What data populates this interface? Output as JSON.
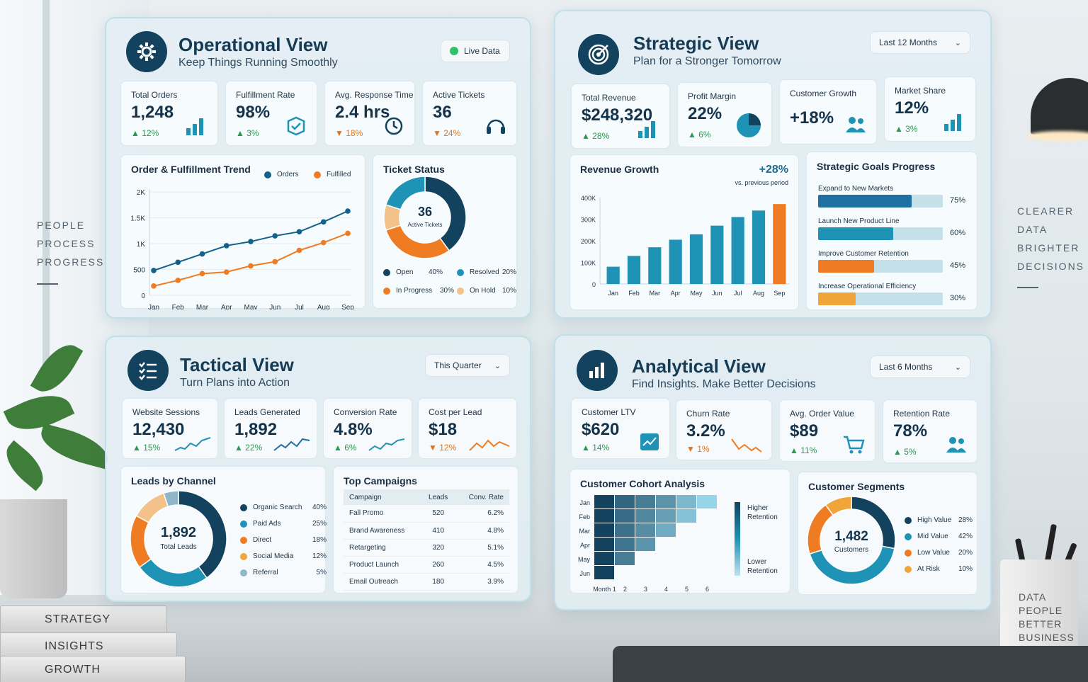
{
  "colors": {
    "navy": "#12425e",
    "teal": "#1f93b6",
    "orange": "#ef7b22",
    "green": "#2a9a4f",
    "peach": "#f2c28a",
    "amber": "#f0a53b"
  },
  "side_left": {
    "lines": [
      "PEOPLE",
      "PROCESS",
      "PROGRESS"
    ]
  },
  "side_right": {
    "lines": [
      "CLEARER",
      "DATA",
      "BRIGHTER",
      "DECISIONS"
    ]
  },
  "books": [
    "STRATEGY",
    "INSIGHTS",
    "GROWTH"
  ],
  "cup": {
    "lines": [
      "DATA",
      "PEOPLE",
      "BETTER",
      "BUSINESS"
    ]
  },
  "operational": {
    "title": "Operational View",
    "subtitle": "Keep Things Running Smoothly",
    "icon": "gear-icon",
    "badge": "Live Data",
    "kpis": [
      {
        "label": "Total Orders",
        "value": "1,248",
        "delta": "12%",
        "dir": "up",
        "icon": "bar-chart-icon"
      },
      {
        "label": "Fulfillment Rate",
        "value": "98%",
        "delta": "3%",
        "dir": "up",
        "icon": "box-icon"
      },
      {
        "label": "Avg. Response Time",
        "value": "2.4 hrs",
        "delta": "18%",
        "dir": "down",
        "icon": "clock-icon"
      },
      {
        "label": "Active Tickets",
        "value": "36",
        "delta": "24%",
        "dir": "down",
        "icon": "headset-icon"
      }
    ],
    "trend": {
      "title": "Order & Fulfillment Trend",
      "legend": [
        "Orders",
        "Fulfilled"
      ],
      "yticks": [
        "2K",
        "1.5K",
        "1K",
        "500",
        "0"
      ],
      "months": [
        "Jan",
        "Feb",
        "Mar",
        "Apr",
        "May",
        "Jun",
        "Jul",
        "Aug",
        "Sep"
      ]
    },
    "tickets": {
      "title": "Ticket Status",
      "center_value": "36",
      "center_label": "Active Tickets",
      "legend": [
        {
          "name": "Open",
          "pct": "40%"
        },
        {
          "name": "Resolved",
          "pct": "20%"
        },
        {
          "name": "In Progress",
          "pct": "30%"
        },
        {
          "name": "On Hold",
          "pct": "10%"
        }
      ]
    }
  },
  "strategic": {
    "title": "Strategic View",
    "subtitle": "Plan for a Stronger Tomorrow",
    "icon": "target-icon",
    "range": "Last 12 Months",
    "kpis": [
      {
        "label": "Total Revenue",
        "value": "$248,320",
        "delta": "28%",
        "dir": "up",
        "icon": "bar-chart-icon"
      },
      {
        "label": "Profit Margin",
        "value": "22%",
        "delta": "6%",
        "dir": "up",
        "icon": "pie-icon"
      },
      {
        "label": "Customer Growth",
        "value": "+18%",
        "delta": "",
        "dir": "up",
        "icon": "users-icon"
      },
      {
        "label": "Market Share",
        "value": "12%",
        "delta": "3%",
        "dir": "up",
        "icon": "bar-chart-icon"
      }
    ],
    "revenue": {
      "title": "Revenue Growth",
      "change": "+28%",
      "change_note": "vs. previous period",
      "yticks": [
        "400K",
        "300K",
        "200K",
        "100K",
        "0"
      ],
      "months": [
        "Jan",
        "Feb",
        "Mar",
        "Apr",
        "May",
        "Jun",
        "Jul",
        "Aug",
        "Sep"
      ]
    },
    "goals": {
      "title": "Strategic Goals Progress",
      "items": [
        {
          "label": "Expand to New Markets",
          "pct": "75%",
          "value": 0.75,
          "color": "#1f6fa0"
        },
        {
          "label": "Launch New Product Line",
          "pct": "60%",
          "value": 0.6,
          "color": "#1f93b6"
        },
        {
          "label": "Improve Customer Retention",
          "pct": "45%",
          "value": 0.45,
          "color": "#ef7b22"
        },
        {
          "label": "Increase Operational Efficiency",
          "pct": "30%",
          "value": 0.3,
          "color": "#f0a53b"
        }
      ]
    }
  },
  "tactical": {
    "title": "Tactical View",
    "subtitle": "Turn Plans into Action",
    "icon": "checklist-icon",
    "range": "This Quarter",
    "kpis": [
      {
        "label": "Website Sessions",
        "value": "12,430",
        "delta": "15%",
        "dir": "up",
        "icon": "sparkline-icon"
      },
      {
        "label": "Leads Generated",
        "value": "1,892",
        "delta": "22%",
        "dir": "up",
        "icon": "sparkline-icon"
      },
      {
        "label": "Conversion Rate",
        "value": "4.8%",
        "delta": "6%",
        "dir": "up",
        "icon": "sparkline-icon"
      },
      {
        "label": "Cost per Lead",
        "value": "$18",
        "delta": "12%",
        "dir": "down",
        "icon": "sparkline-icon"
      }
    ],
    "channels": {
      "title": "Leads by Channel",
      "center_value": "1,892",
      "center_label": "Total Leads",
      "legend": [
        {
          "name": "Organic Search",
          "pct": "40%"
        },
        {
          "name": "Paid Ads",
          "pct": "25%"
        },
        {
          "name": "Direct",
          "pct": "18%"
        },
        {
          "name": "Social Media",
          "pct": "12%"
        },
        {
          "name": "Referral",
          "pct": "5%"
        }
      ]
    },
    "campaigns": {
      "title": "Top Campaigns",
      "headers": [
        "Campaign",
        "Leads",
        "Conv. Rate"
      ],
      "rows": [
        [
          "Fall Promo",
          "520",
          "6.2%"
        ],
        [
          "Brand Awareness",
          "410",
          "4.8%"
        ],
        [
          "Retargeting",
          "320",
          "5.1%"
        ],
        [
          "Product Launch",
          "260",
          "4.5%"
        ],
        [
          "Email Outreach",
          "180",
          "3.9%"
        ]
      ]
    }
  },
  "analytical": {
    "title": "Analytical View",
    "subtitle": "Find Insights. Make Better Decisions",
    "icon": "analytics-icon",
    "range": "Last 6 Months",
    "kpis": [
      {
        "label": "Customer LTV",
        "value": "$620",
        "delta": "14%",
        "dir": "up",
        "icon": "trend-icon"
      },
      {
        "label": "Churn Rate",
        "value": "3.2%",
        "delta": "1%",
        "dir": "down",
        "icon": "sparkline-icon"
      },
      {
        "label": "Avg. Order Value",
        "value": "$89",
        "delta": "11%",
        "dir": "up",
        "icon": "cart-icon"
      },
      {
        "label": "Retention Rate",
        "value": "78%",
        "delta": "5%",
        "dir": "up",
        "icon": "users-icon"
      }
    ],
    "cohort": {
      "title": "Customer Cohort Analysis",
      "rows": [
        "Jan",
        "Feb",
        "Mar",
        "Apr",
        "May",
        "Jun"
      ],
      "cols": [
        "Month 1",
        "2",
        "3",
        "4",
        "5",
        "6"
      ],
      "legend_high": "Higher Retention",
      "legend_low": "Lower Retention"
    },
    "segments": {
      "title": "Customer Segments",
      "center_value": "1,482",
      "center_label": "Customers",
      "legend": [
        {
          "name": "High Value",
          "pct": "28%"
        },
        {
          "name": "Mid Value",
          "pct": "42%"
        },
        {
          "name": "Low Value",
          "pct": "20%"
        },
        {
          "name": "At Risk",
          "pct": "10%"
        }
      ]
    }
  },
  "chart_data": [
    {
      "type": "line",
      "title": "Order & Fulfillment Trend",
      "categories": [
        "Jan",
        "Feb",
        "Mar",
        "Apr",
        "May",
        "Jun",
        "Jul",
        "Aug",
        "Sep"
      ],
      "series": [
        {
          "name": "Orders",
          "values": [
            480,
            640,
            800,
            960,
            1040,
            1150,
            1230,
            1420,
            1630
          ],
          "color": "#12618a"
        },
        {
          "name": "Fulfilled",
          "values": [
            180,
            290,
            420,
            450,
            570,
            650,
            870,
            1020,
            1200
          ],
          "color": "#ef7b22"
        }
      ],
      "ylim": [
        0,
        2000
      ],
      "grid": true,
      "legend": "top-right"
    },
    {
      "type": "pie",
      "title": "Ticket Status",
      "labels": [
        "Open",
        "In Progress",
        "On Hold",
        "Resolved"
      ],
      "values": [
        40,
        30,
        10,
        20
      ]
    },
    {
      "type": "bar",
      "title": "Revenue Growth",
      "categories": [
        "Jan",
        "Feb",
        "Mar",
        "Apr",
        "May",
        "Jun",
        "Jul",
        "Aug",
        "Sep"
      ],
      "values": [
        80000,
        130000,
        170000,
        205000,
        230000,
        270000,
        310000,
        340000,
        370000
      ],
      "ylim": [
        0,
        400000
      ]
    },
    {
      "type": "pie",
      "title": "Leads by Channel",
      "labels": [
        "Organic Search",
        "Paid Ads",
        "Direct",
        "Social Media",
        "Referral"
      ],
      "values": [
        40,
        25,
        18,
        12,
        5
      ]
    },
    {
      "type": "heatmap",
      "title": "Customer Cohort Analysis",
      "rows": [
        "Jan",
        "Feb",
        "Mar",
        "Apr",
        "May",
        "Jun"
      ],
      "cols": [
        "Month 1",
        "2",
        "3",
        "4",
        "5",
        "6"
      ],
      "values": [
        [
          1.0,
          0.85,
          0.75,
          0.65,
          0.5,
          0.35
        ],
        [
          1.0,
          0.82,
          0.7,
          0.6,
          0.45,
          0
        ],
        [
          1.0,
          0.8,
          0.68,
          0.55,
          0,
          0
        ],
        [
          1.0,
          0.78,
          0.65,
          0,
          0,
          0
        ],
        [
          1.0,
          0.75,
          0,
          0,
          0,
          0
        ],
        [
          1.0,
          0,
          0,
          0,
          0,
          0
        ]
      ]
    },
    {
      "type": "pie",
      "title": "Customer Segments",
      "labels": [
        "High Value",
        "Mid Value",
        "Low Value",
        "At Risk"
      ],
      "values": [
        28,
        42,
        20,
        10
      ]
    }
  ]
}
